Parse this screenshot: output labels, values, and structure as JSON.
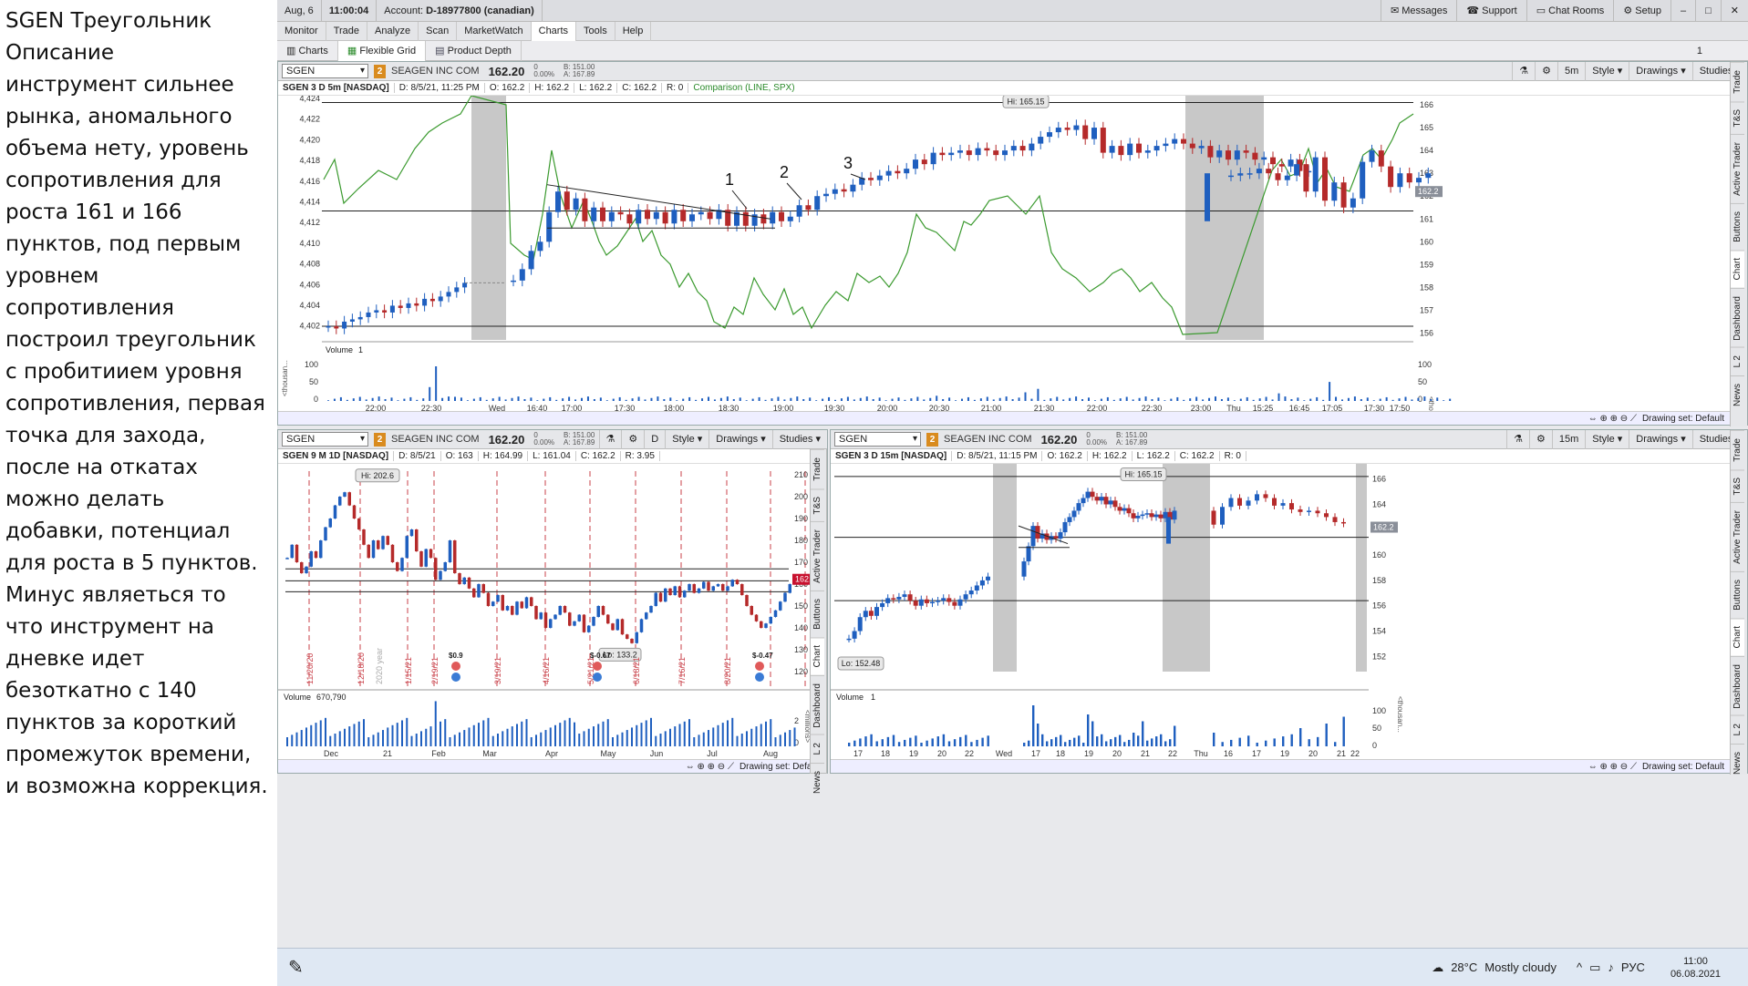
{
  "note": "SGEN Треугольник\nОписание\nинструмент сильнее рынка, аномального объема нету, уровень сопротивления для роста 161 и 166 пунктов, под первым уровнем сопротивления построил треугольник с пробитиием уровня сопротивления, первая точка для захода, после на откатах можно делать добавки, потенциал для роста в 5 пунктов. Минус являеться то что инструмент на дневке идет безоткатно с 140 пунктов за короткий промежуток времени, и возможна коррекция.",
  "topbar": {
    "date": "Aug, 6",
    "time": "11:00:04",
    "account_label": "Account:",
    "account": "D-18977800 (canadian)",
    "messages": "Messages",
    "support": "Support",
    "chat": "Chat Rooms",
    "setup": "Setup"
  },
  "menu": [
    "Monitor",
    "Trade",
    "Analyze",
    "Scan",
    "MarketWatch",
    "Charts",
    "Tools",
    "Help"
  ],
  "subtabs": {
    "charts": "Charts",
    "grid": "Flexible Grid",
    "depth": "Product Depth",
    "grid_num": "1"
  },
  "main": {
    "symbol": "SGEN",
    "company": "SEAGEN INC COM",
    "price": "162.20",
    "chg": "0",
    "chg_pct": "0.00%",
    "bid": "B: 151.00",
    "ask": "A: 167.89",
    "interval": "5m",
    "style": "Style",
    "drawings": "Drawings",
    "studies": "Studies",
    "hdr": [
      "SGEN 3 D 5m [NASDAQ]",
      "D: 8/5/21, 11:25 PM",
      "O: 162.2",
      "H: 162.2",
      "L: 162.2",
      "C: 162.2",
      "R: 0"
    ],
    "comparison": "Comparison (LINE, SPX)",
    "hi": "Hi: 165.15",
    "last_tag": "162.2",
    "left_axis": [
      "4,424",
      "4,422",
      "4,420",
      "4,418",
      "4,416",
      "4,414",
      "4,412",
      "4,410",
      "4,408",
      "4,406",
      "4,404",
      "4,402"
    ],
    "right_axis": [
      "166",
      "165",
      "164",
      "163",
      "162",
      "161",
      "160",
      "159",
      "158",
      "157",
      "156"
    ],
    "volume_label": "Volume",
    "volume_val": "1",
    "vol_axis": [
      "100",
      "50",
      "0"
    ],
    "vol_unit": "<thousan...",
    "time_axis": [
      "22:00",
      "22:30",
      "Wed",
      "16:40",
      "17:00",
      "17:30",
      "18:00",
      "18:30",
      "19:00",
      "19:30",
      "20:00",
      "20:30",
      "21:00",
      "21:30",
      "22:00",
      "22:30",
      "23:00",
      "Thu",
      "15:25",
      "16:45",
      "17:05",
      "17:30",
      "17:50"
    ],
    "marks": [
      "1",
      "2",
      "3"
    ],
    "drawing_set": "Drawing set: Default"
  },
  "daily": {
    "symbol": "SGEN",
    "company": "SEAGEN INC COM",
    "price": "162.20",
    "chg": "0",
    "chg_pct": "0.00%",
    "bid": "B: 151.00",
    "ask": "A: 167.89",
    "interval": "D",
    "hdr": [
      "SGEN 9 M 1D [NASDAQ]",
      "D: 8/5/21",
      "O: 163",
      "H: 164.99",
      "L: 161.04",
      "C: 162.2",
      "R: 3.95"
    ],
    "hi": "Hi: 202.6",
    "lo": "Lo: 133.2",
    "last_tag": "162.2",
    "right_axis": [
      "210",
      "200",
      "190",
      "180",
      "170",
      "160",
      "150",
      "140",
      "130",
      "120"
    ],
    "dates": [
      "11/20/20",
      "12/18/20",
      "1/15/21",
      "2/19/21",
      "3/19/21",
      "4/16/21",
      "5/21/21",
      "6/18/21",
      "7/16/21",
      "8/20/21"
    ],
    "year": "2020 year",
    "earnings": [
      "$0.9",
      "$-0.67",
      "$-0.47"
    ],
    "volume_label": "Volume",
    "volume_val": "670,790",
    "vol_axis": [
      "2",
      "0"
    ],
    "vol_unit": "<millions>",
    "time_axis": [
      "Dec",
      "21",
      "Feb",
      "Mar",
      "Apr",
      "May",
      "Jun",
      "Jul",
      "Aug"
    ],
    "drawing_set": "Drawing set: Default"
  },
  "m15": {
    "symbol": "SGEN",
    "company": "SEAGEN INC COM",
    "price": "162.20",
    "chg": "0",
    "chg_pct": "0.00%",
    "bid": "B: 151.00",
    "ask": "A: 167.89",
    "interval": "15m",
    "hdr": [
      "SGEN 3 D 15m [NASDAQ]",
      "D: 8/5/21, 11:15 PM",
      "O: 162.2",
      "H: 162.2",
      "L: 162.2",
      "C: 162.2",
      "R: 0"
    ],
    "hi": "Hi: 165.15",
    "lo": "Lo: 152.48",
    "last_tag": "162.2",
    "right_axis": [
      "166",
      "164",
      "162",
      "160",
      "158",
      "156",
      "154",
      "152"
    ],
    "volume_label": "Volume",
    "volume_val": "1",
    "vol_axis": [
      "100",
      "50",
      "0"
    ],
    "vol_unit": "<thousan...",
    "time_axis": [
      "17",
      "18",
      "19",
      "20",
      "22",
      "Wed",
      "17",
      "18",
      "19",
      "20",
      "21",
      "22",
      "Thu",
      "16",
      "17",
      "19",
      "20",
      "21",
      "22"
    ],
    "drawing_set": "Drawing set: Default"
  },
  "side_tabs": [
    "Trade",
    "T&S",
    "Active Trader",
    "Buttons",
    "Chart",
    "Dashboard",
    "L 2",
    "News"
  ],
  "taskbar": {
    "temp": "28°C",
    "weather": "Mostly cloudy",
    "lang": "РУС",
    "time": "11:00",
    "date": "06.08.2021"
  },
  "colors": {
    "up": "#1f5fbf",
    "down": "#b52a2a",
    "comparison": "#3b9a2f",
    "gray_session": "#c8c8c8",
    "signal_line": "#c9414a",
    "label_bg": "#8a8f99"
  }
}
